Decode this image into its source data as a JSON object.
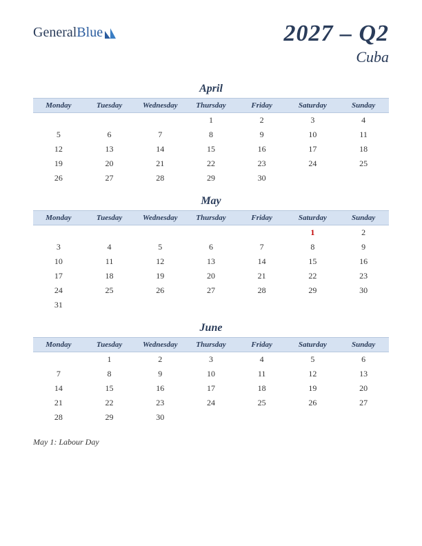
{
  "logo": {
    "text1": "General",
    "text2": "Blue"
  },
  "header": {
    "quarter": "2027 – Q2",
    "country": "Cuba"
  },
  "colors": {
    "header_bg": "#d6e2f2",
    "header_border": "#b6c7de",
    "text_dark": "#2a3c5a",
    "holiday": "#c00000"
  },
  "daynames": [
    "Monday",
    "Tuesday",
    "Wednesday",
    "Thursday",
    "Friday",
    "Saturday",
    "Sunday"
  ],
  "months": [
    {
      "name": "April",
      "weeks": [
        [
          "",
          "",
          "",
          "1",
          "2",
          "3",
          "4"
        ],
        [
          "5",
          "6",
          "7",
          "8",
          "9",
          "10",
          "11"
        ],
        [
          "12",
          "13",
          "14",
          "15",
          "16",
          "17",
          "18"
        ],
        [
          "19",
          "20",
          "21",
          "22",
          "23",
          "24",
          "25"
        ],
        [
          "26",
          "27",
          "28",
          "29",
          "30",
          "",
          ""
        ]
      ],
      "holidays": []
    },
    {
      "name": "May",
      "weeks": [
        [
          "",
          "",
          "",
          "",
          "",
          "1",
          "2"
        ],
        [
          "3",
          "4",
          "5",
          "6",
          "7",
          "8",
          "9"
        ],
        [
          "10",
          "11",
          "12",
          "13",
          "14",
          "15",
          "16"
        ],
        [
          "17",
          "18",
          "19",
          "20",
          "21",
          "22",
          "23"
        ],
        [
          "24",
          "25",
          "26",
          "27",
          "28",
          "29",
          "30"
        ],
        [
          "31",
          "",
          "",
          "",
          "",
          "",
          ""
        ]
      ],
      "holidays": [
        {
          "week": 0,
          "day": 5
        }
      ]
    },
    {
      "name": "June",
      "weeks": [
        [
          "",
          "1",
          "2",
          "3",
          "4",
          "5",
          "6"
        ],
        [
          "7",
          "8",
          "9",
          "10",
          "11",
          "12",
          "13"
        ],
        [
          "14",
          "15",
          "16",
          "17",
          "18",
          "19",
          "20"
        ],
        [
          "21",
          "22",
          "23",
          "24",
          "25",
          "26",
          "27"
        ],
        [
          "28",
          "29",
          "30",
          "",
          "",
          "",
          ""
        ]
      ],
      "holidays": []
    }
  ],
  "notes": [
    "May 1: Labour Day"
  ]
}
